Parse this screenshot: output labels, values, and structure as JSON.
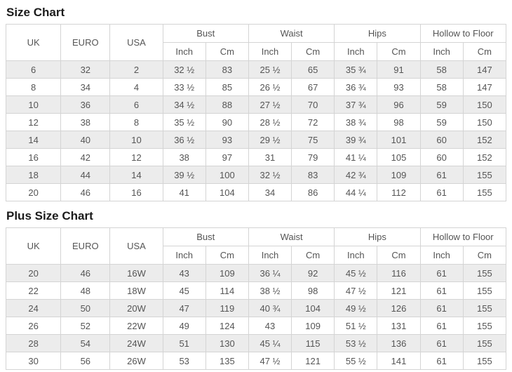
{
  "colors": {
    "border": "#d4d4d4",
    "alt_row_bg": "#ececec",
    "row_bg": "#ffffff",
    "text": "#555555",
    "title": "#1b1b1b"
  },
  "tables": [
    {
      "title": "Size Chart",
      "header": {
        "span_columns": [
          "UK",
          "EURO",
          "USA"
        ],
        "group_columns": [
          "Bust",
          "Waist",
          "Hips",
          "Hollow to Floor"
        ],
        "sub_columns": [
          "Inch",
          "Cm"
        ]
      },
      "rows": [
        [
          "6",
          "32",
          "2",
          "32 ½",
          "83",
          "25 ½",
          "65",
          "35 ¾",
          "91",
          "58",
          "147"
        ],
        [
          "8",
          "34",
          "4",
          "33 ½",
          "85",
          "26 ½",
          "67",
          "36 ¾",
          "93",
          "58",
          "147"
        ],
        [
          "10",
          "36",
          "6",
          "34 ½",
          "88",
          "27 ½",
          "70",
          "37 ¾",
          "96",
          "59",
          "150"
        ],
        [
          "12",
          "38",
          "8",
          "35 ½",
          "90",
          "28 ½",
          "72",
          "38 ¾",
          "98",
          "59",
          "150"
        ],
        [
          "14",
          "40",
          "10",
          "36 ½",
          "93",
          "29 ½",
          "75",
          "39 ¾",
          "101",
          "60",
          "152"
        ],
        [
          "16",
          "42",
          "12",
          "38",
          "97",
          "31",
          "79",
          "41 ¼",
          "105",
          "60",
          "152"
        ],
        [
          "18",
          "44",
          "14",
          "39 ½",
          "100",
          "32 ½",
          "83",
          "42 ¾",
          "109",
          "61",
          "155"
        ],
        [
          "20",
          "46",
          "16",
          "41",
          "104",
          "34",
          "86",
          "44 ¼",
          "112",
          "61",
          "155"
        ]
      ]
    },
    {
      "title": "Plus Size Chart",
      "header": {
        "span_columns": [
          "UK",
          "EURO",
          "USA"
        ],
        "group_columns": [
          "Bust",
          "Waist",
          "Hips",
          "Hollow to Floor"
        ],
        "sub_columns": [
          "Inch",
          "Cm"
        ]
      },
      "rows": [
        [
          "20",
          "46",
          "16W",
          "43",
          "109",
          "36 ¼",
          "92",
          "45 ½",
          "116",
          "61",
          "155"
        ],
        [
          "22",
          "48",
          "18W",
          "45",
          "114",
          "38 ½",
          "98",
          "47 ½",
          "121",
          "61",
          "155"
        ],
        [
          "24",
          "50",
          "20W",
          "47",
          "119",
          "40 ¾",
          "104",
          "49 ½",
          "126",
          "61",
          "155"
        ],
        [
          "26",
          "52",
          "22W",
          "49",
          "124",
          "43",
          "109",
          "51 ½",
          "131",
          "61",
          "155"
        ],
        [
          "28",
          "54",
          "24W",
          "51",
          "130",
          "45 ¼",
          "115",
          "53 ½",
          "136",
          "61",
          "155"
        ],
        [
          "30",
          "56",
          "26W",
          "53",
          "135",
          "47 ½",
          "121",
          "55 ½",
          "141",
          "61",
          "155"
        ]
      ]
    }
  ],
  "chart_data": [
    {
      "type": "table",
      "title": "Size Chart",
      "columns": [
        "UK",
        "EURO",
        "USA",
        "Bust Inch",
        "Bust Cm",
        "Waist Inch",
        "Waist Cm",
        "Hips Inch",
        "Hips Cm",
        "Hollow to Floor Inch",
        "Hollow to Floor Cm"
      ],
      "rows": [
        [
          "6",
          "32",
          "2",
          "32 ½",
          "83",
          "25 ½",
          "65",
          "35 ¾",
          "91",
          "58",
          "147"
        ],
        [
          "8",
          "34",
          "4",
          "33 ½",
          "85",
          "26 ½",
          "67",
          "36 ¾",
          "93",
          "58",
          "147"
        ],
        [
          "10",
          "36",
          "6",
          "34 ½",
          "88",
          "27 ½",
          "70",
          "37 ¾",
          "96",
          "59",
          "150"
        ],
        [
          "12",
          "38",
          "8",
          "35 ½",
          "90",
          "28 ½",
          "72",
          "38 ¾",
          "98",
          "59",
          "150"
        ],
        [
          "14",
          "40",
          "10",
          "36 ½",
          "93",
          "29 ½",
          "75",
          "39 ¾",
          "101",
          "60",
          "152"
        ],
        [
          "16",
          "42",
          "12",
          "38",
          "97",
          "31",
          "79",
          "41 ¼",
          "105",
          "60",
          "152"
        ],
        [
          "18",
          "44",
          "14",
          "39 ½",
          "100",
          "32 ½",
          "83",
          "42 ¾",
          "109",
          "61",
          "155"
        ],
        [
          "20",
          "46",
          "16",
          "41",
          "104",
          "34",
          "86",
          "44 ¼",
          "112",
          "61",
          "155"
        ]
      ]
    },
    {
      "type": "table",
      "title": "Plus Size Chart",
      "columns": [
        "UK",
        "EURO",
        "USA",
        "Bust Inch",
        "Bust Cm",
        "Waist Inch",
        "Waist Cm",
        "Hips Inch",
        "Hips Cm",
        "Hollow to Floor Inch",
        "Hollow to Floor Cm"
      ],
      "rows": [
        [
          "20",
          "46",
          "16W",
          "43",
          "109",
          "36 ¼",
          "92",
          "45 ½",
          "116",
          "61",
          "155"
        ],
        [
          "22",
          "48",
          "18W",
          "45",
          "114",
          "38 ½",
          "98",
          "47 ½",
          "121",
          "61",
          "155"
        ],
        [
          "24",
          "50",
          "20W",
          "47",
          "119",
          "40 ¾",
          "104",
          "49 ½",
          "126",
          "61",
          "155"
        ],
        [
          "26",
          "52",
          "22W",
          "49",
          "124",
          "43",
          "109",
          "51 ½",
          "131",
          "61",
          "155"
        ],
        [
          "28",
          "54",
          "24W",
          "51",
          "130",
          "45 ¼",
          "115",
          "53 ½",
          "136",
          "61",
          "155"
        ],
        [
          "30",
          "56",
          "26W",
          "53",
          "135",
          "47 ½",
          "121",
          "55 ½",
          "141",
          "61",
          "155"
        ]
      ]
    }
  ]
}
